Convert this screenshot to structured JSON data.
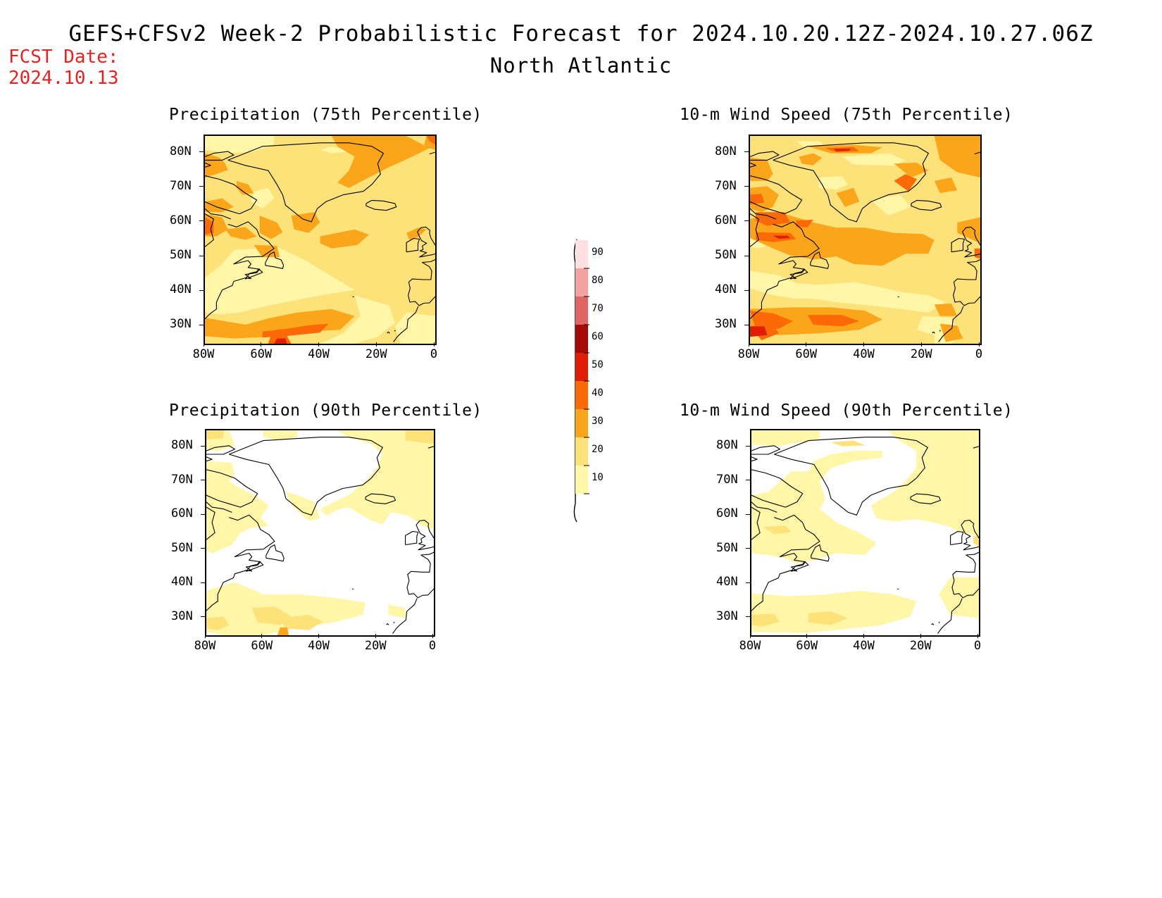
{
  "header": {
    "title": "GEFS+CFSv2 Week-2 Probabilistic Forecast for 2024.10.20.12Z-2024.10.27.06Z",
    "region": "North Atlantic",
    "fcst_date_label": "FCST Date:",
    "fcst_date_value": "2024.10.13"
  },
  "colors": {
    "c10": "#fff6a8",
    "c20": "#fde27a",
    "c30": "#fba51a",
    "c40": "#fb6a07",
    "c50": "#e01e06",
    "c60": "#a50a06",
    "c70": "#e06565",
    "c80": "#f4a2a2",
    "c90": "#fde1e1",
    "coast": "#000000"
  },
  "colorbar": {
    "labels": [
      "90",
      "80",
      "70",
      "60",
      "50",
      "40",
      "30",
      "20",
      "10"
    ]
  },
  "axes": {
    "lat_labels": [
      "80N",
      "70N",
      "60N",
      "50N",
      "40N",
      "30N"
    ],
    "lon_labels": [
      "80W",
      "60W",
      "40W",
      "20W",
      "0"
    ]
  },
  "panels": [
    {
      "id": "precip-75",
      "title": "Precipitation (75th Percentile)",
      "base_level": 20
    },
    {
      "id": "wind-75",
      "title": "10-m Wind Speed (75th Percentile)",
      "base_level": 20
    },
    {
      "id": "precip-90",
      "title": "Precipitation (90th Percentile)",
      "base_level": 0
    },
    {
      "id": "wind-90",
      "title": "10-m Wind Speed (90th Percentile)",
      "base_level": 0
    }
  ]
}
